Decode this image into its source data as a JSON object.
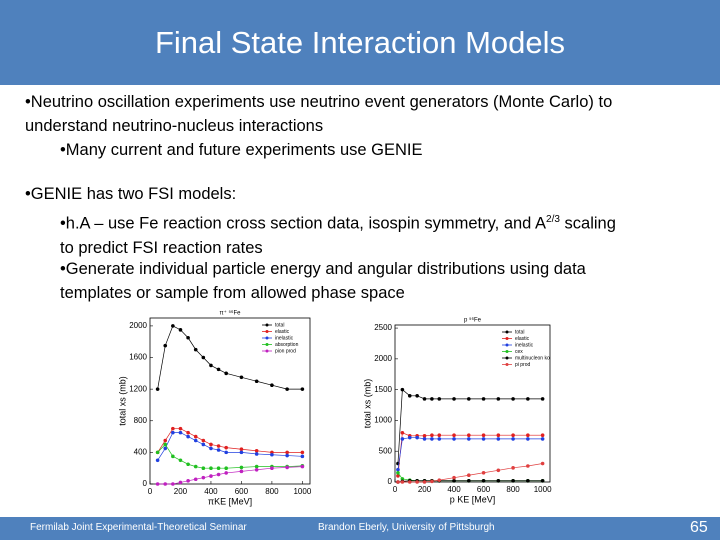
{
  "header": {
    "title": "Final State Interaction Models"
  },
  "body": {
    "bullets": [
      {
        "text": "•Neutrino oscillation experiments use neutrino event generators (Monte Carlo) to understand neutrino-nucleus interactions",
        "sub": [
          {
            "text": "•Many current and future experiments use GENIE"
          }
        ]
      },
      {
        "text": "•GENIE has two FSI models:",
        "sub": [
          {
            "text": "•h.A – use Fe reaction cross section data, isospin symmetry, and A",
            "sup": "2/3",
            "tail": " scaling to predict FSI reaction rates"
          },
          {
            "text": "•Generate individual particle energy and angular distributions using data templates or sample from allowed phase space"
          }
        ]
      }
    ]
  },
  "footer": {
    "left": "Fermilab Joint Experimental-Theoretical Seminar",
    "center": "Brandon Eberly, University of Pittsburgh",
    "page": 65
  },
  "chart_data": [
    {
      "type": "line",
      "title": "π⁺ ⁵⁶Fe",
      "x_label": "πKE [MeV]",
      "y_label": "total xs (mb)",
      "xlim": [
        0,
        1050
      ],
      "ylim": [
        0,
        2100
      ],
      "xticks": [
        0,
        200,
        400,
        600,
        800,
        1000
      ],
      "yticks": [
        0,
        400,
        800,
        1200,
        1600,
        2000
      ],
      "legend": "upper right",
      "x": [
        50,
        100,
        150,
        200,
        250,
        300,
        350,
        400,
        450,
        500,
        600,
        700,
        800,
        900,
        1000
      ],
      "series": [
        {
          "name": "total",
          "color": "#000000",
          "values": [
            1200,
            1750,
            2000,
            1950,
            1850,
            1700,
            1600,
            1500,
            1450,
            1400,
            1350,
            1300,
            1250,
            1200,
            1200
          ]
        },
        {
          "name": "elastic",
          "color": "#e02020",
          "values": [
            400,
            550,
            700,
            700,
            650,
            600,
            550,
            500,
            480,
            460,
            440,
            420,
            400,
            400,
            400
          ]
        },
        {
          "name": "inelastic",
          "color": "#2040e0",
          "values": [
            300,
            450,
            650,
            650,
            600,
            550,
            500,
            450,
            430,
            400,
            400,
            380,
            370,
            360,
            350
          ]
        },
        {
          "name": "absorption",
          "color": "#20c020",
          "values": [
            400,
            500,
            350,
            300,
            250,
            220,
            200,
            200,
            200,
            200,
            210,
            220,
            220,
            220,
            230
          ]
        },
        {
          "name": "pion prod",
          "color": "#c020c0",
          "values": [
            0,
            0,
            0,
            20,
            40,
            60,
            80,
            100,
            120,
            140,
            160,
            180,
            200,
            210,
            220
          ]
        }
      ]
    },
    {
      "type": "line",
      "title": "p ⁵⁶Fe",
      "x_label": "p KE [MeV]",
      "y_label": "total xs (mb)",
      "xlim": [
        0,
        1050
      ],
      "ylim": [
        0,
        2550
      ],
      "xticks": [
        0,
        200,
        400,
        600,
        800,
        1000
      ],
      "yticks": [
        0,
        500,
        1000,
        1500,
        2000,
        2500
      ],
      "legend": "upper right",
      "x": [
        20,
        50,
        100,
        150,
        200,
        250,
        300,
        400,
        500,
        600,
        700,
        800,
        900,
        1000
      ],
      "series": [
        {
          "name": "total",
          "color": "#000000",
          "values": [
            300,
            1500,
            1400,
            1400,
            1350,
            1350,
            1350,
            1350,
            1350,
            1350,
            1350,
            1350,
            1350,
            1350
          ]
        },
        {
          "name": "elastic",
          "color": "#e02020",
          "values": [
            100,
            800,
            750,
            750,
            750,
            760,
            760,
            760,
            760,
            760,
            760,
            760,
            760,
            760
          ]
        },
        {
          "name": "inelastic",
          "color": "#2040e0",
          "values": [
            200,
            700,
            720,
            720,
            700,
            700,
            700,
            700,
            700,
            700,
            700,
            700,
            700,
            700
          ]
        },
        {
          "name": "cex",
          "color": "#20c020",
          "values": [
            150,
            50,
            30,
            20,
            20,
            20,
            20,
            20,
            20,
            20,
            20,
            20,
            20,
            20
          ]
        },
        {
          "name": "multinucleon ko",
          "color": "#000000",
          "values": [
            0,
            10,
            20,
            20,
            20,
            20,
            20,
            20,
            20,
            20,
            20,
            20,
            20,
            20
          ]
        },
        {
          "name": "pi prod",
          "color": "#e04040",
          "values": [
            0,
            0,
            0,
            0,
            0,
            10,
            30,
            70,
            110,
            150,
            190,
            230,
            260,
            300
          ]
        }
      ]
    }
  ]
}
